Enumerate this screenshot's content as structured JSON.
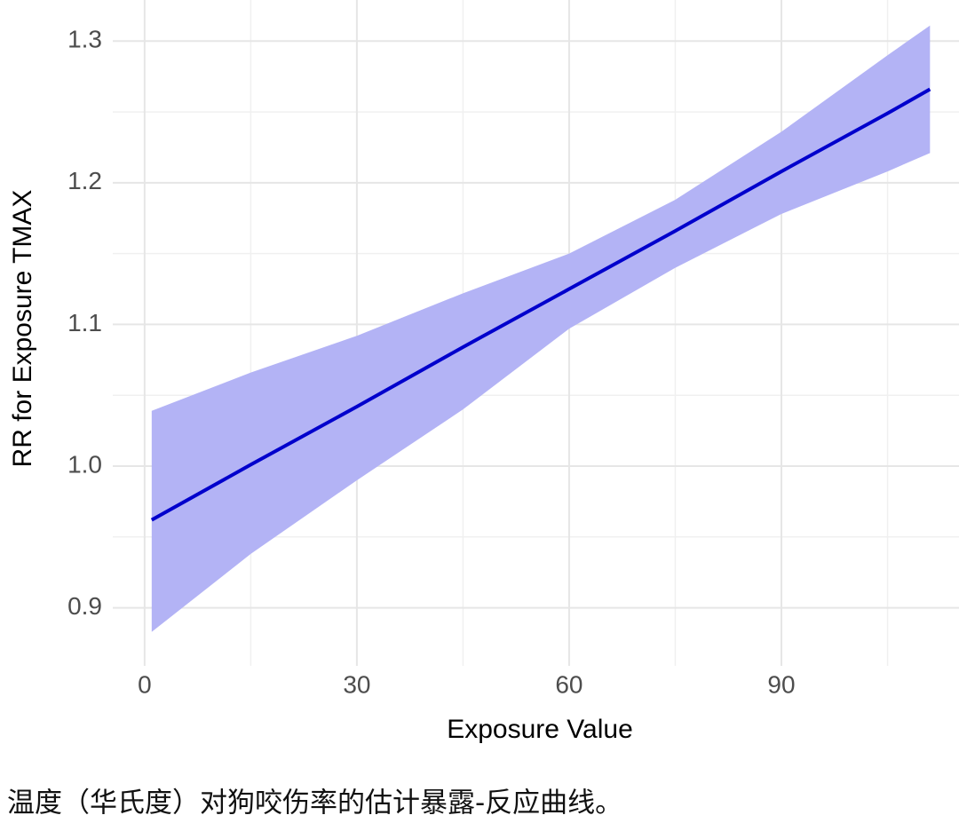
{
  "chart_data": {
    "type": "line",
    "x_label": "Exposure Value",
    "y_label": "RR for Exposure TMAX",
    "x": [
      1,
      15,
      30,
      45,
      60,
      75,
      90,
      105,
      111
    ],
    "series": [
      {
        "name": "RR",
        "color": "#0000cc",
        "values": [
          0.962,
          1.001,
          1.042,
          1.084,
          1.125,
          1.166,
          1.208,
          1.249,
          1.266
        ]
      }
    ],
    "band": {
      "color": "#b3b3f5",
      "lower": [
        0.883,
        0.938,
        0.99,
        1.04,
        1.097,
        1.14,
        1.178,
        1.208,
        1.221
      ],
      "upper": [
        1.039,
        1.066,
        1.092,
        1.122,
        1.15,
        1.188,
        1.236,
        1.29,
        1.311
      ]
    },
    "xlim": [
      -4.5,
      115.1
    ],
    "ylim": [
      0.859,
      1.329
    ],
    "xticks": [
      0,
      30,
      60,
      90
    ],
    "yticks": [
      {
        "value": 0.9,
        "label": "0.9"
      },
      {
        "value": 1,
        "label": "1.0"
      },
      1.1,
      1.2,
      1.3
    ],
    "x_minor_ticks": [
      15,
      45,
      75,
      105
    ],
    "y_minor_ticks": [
      0.95,
      1.05,
      1.15,
      1.25
    ],
    "grid": true
  },
  "caption": "温度（华氏度）对狗咬伤率的估计暴露-反应曲线。"
}
